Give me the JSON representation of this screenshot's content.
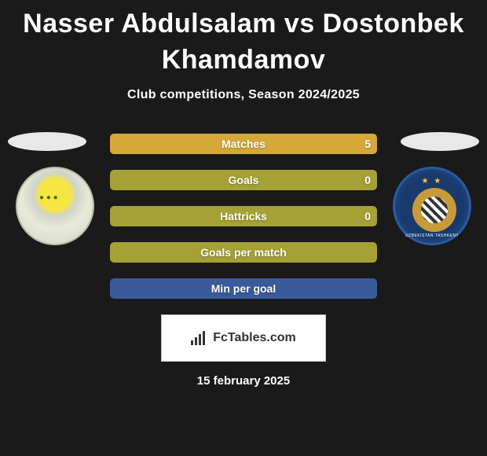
{
  "title_line1": "Nasser Abdulsalam vs Dostonbek",
  "title_line2": "Khamdamov",
  "subtitle": "Club competitions, Season 2024/2025",
  "date": "15 february 2025",
  "footer_brand": "FcTables.com",
  "colors": {
    "background": "#1a1a1a",
    "text": "#ffffff",
    "bar_olive": "#a5a136",
    "bar_gold": "#d4a93a",
    "bar_blue": "#3a5a9a",
    "ellipse": "#e8e8e8"
  },
  "stats": [
    {
      "label": "Matches",
      "left_value": "",
      "right_value": "5",
      "left_fill_pct": 0,
      "right_fill_pct": 100,
      "bg_color": "#a5a136",
      "right_fill_color": "#d4a93a"
    },
    {
      "label": "Goals",
      "left_value": "",
      "right_value": "0",
      "left_fill_pct": 0,
      "right_fill_pct": 0,
      "bg_color": "#a5a136",
      "right_fill_color": "#d4a93a"
    },
    {
      "label": "Hattricks",
      "left_value": "",
      "right_value": "0",
      "left_fill_pct": 0,
      "right_fill_pct": 0,
      "bg_color": "#a5a136",
      "right_fill_color": "#d4a93a"
    },
    {
      "label": "Goals per match",
      "left_value": "",
      "right_value": "",
      "left_fill_pct": 0,
      "right_fill_pct": 0,
      "bg_color": "#a5a136",
      "right_fill_color": "#d4a93a"
    },
    {
      "label": "Min per goal",
      "left_value": "",
      "right_value": "",
      "left_fill_pct": 0,
      "right_fill_pct": 0,
      "bg_color": "#3a5a9a",
      "right_fill_color": "#3a5a9a"
    }
  ]
}
